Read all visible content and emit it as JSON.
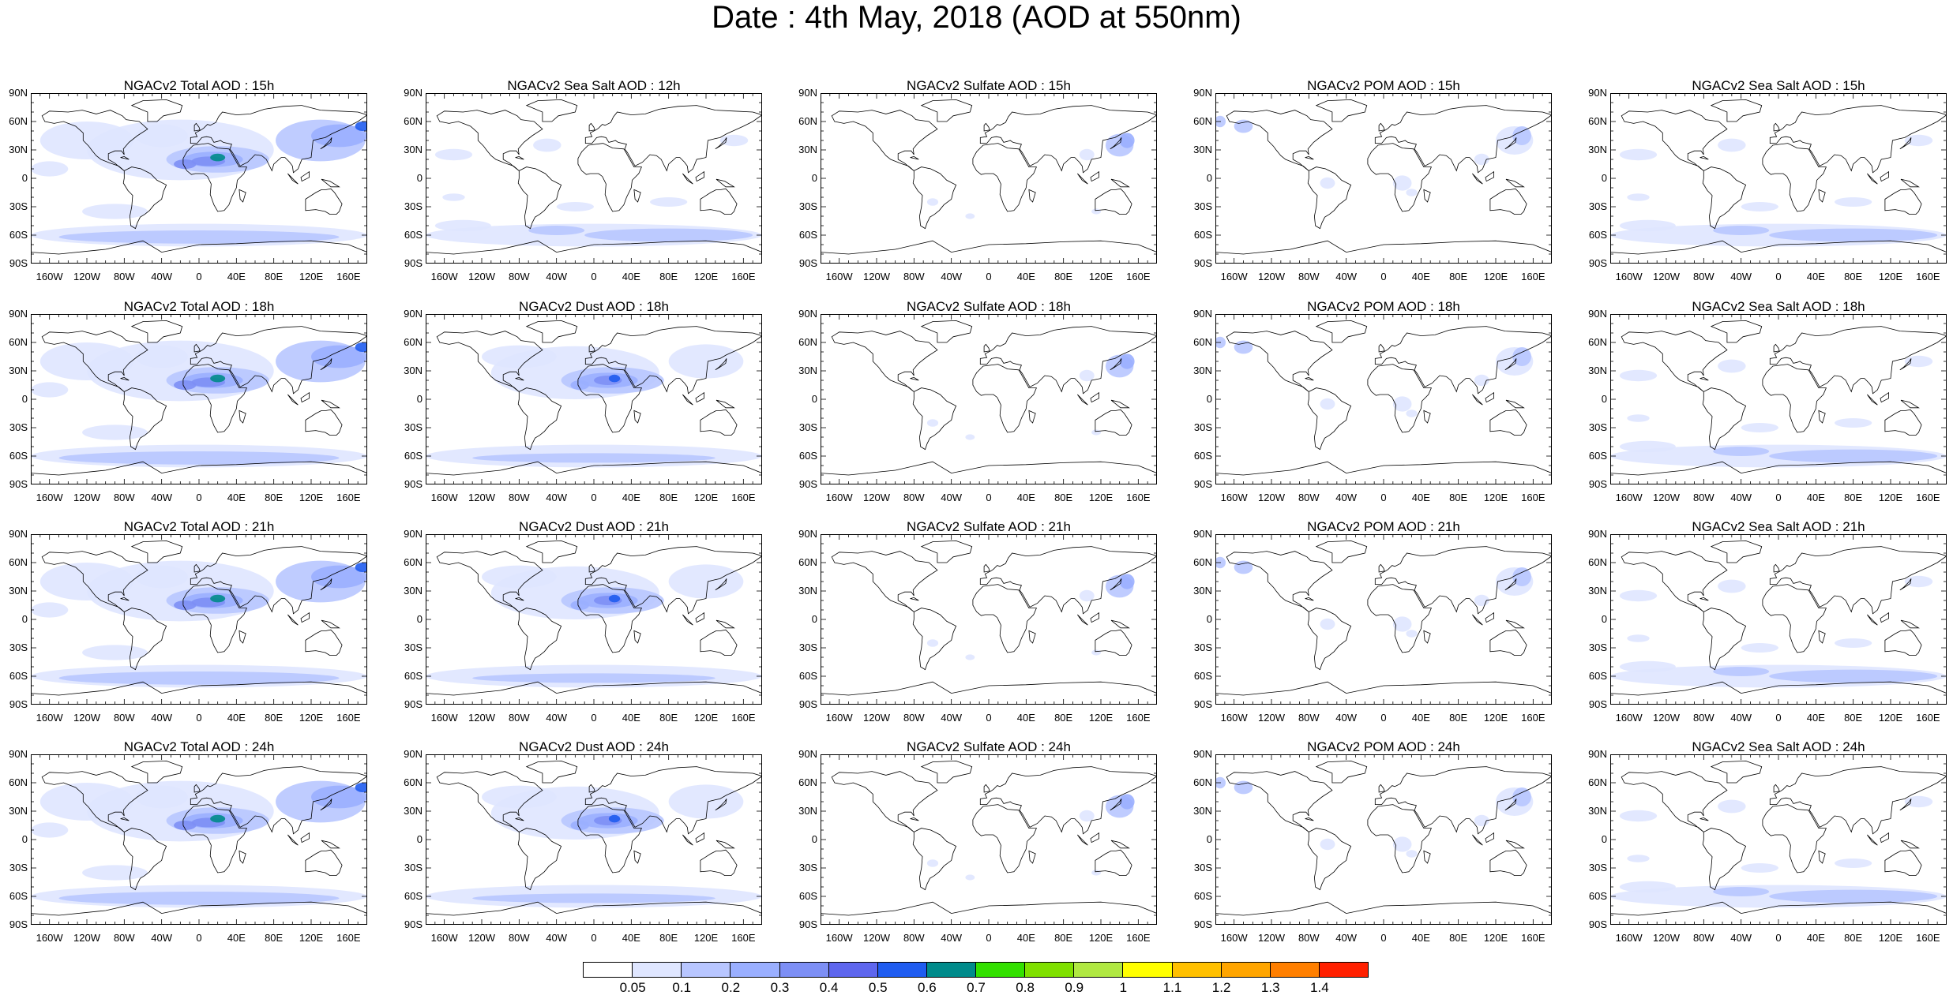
{
  "title": "Date : 4th May, 2018 (AOD at 550nm)",
  "lat_labels": [
    "90N",
    "60N",
    "30N",
    "0",
    "30S",
    "60S",
    "90S"
  ],
  "lon_labels": [
    "160W",
    "120W",
    "80W",
    "40W",
    "0",
    "40E",
    "80E",
    "120E",
    "160E"
  ],
  "panel_titles": [
    [
      "NGACv2 Total AOD : 15h",
      "NGACv2 Sea Salt  AOD : 12h",
      "NGACv2 Sulfate AOD : 15h",
      "NGACv2 POM AOD : 15h",
      "NGACv2 Sea Salt  AOD : 15h"
    ],
    [
      "NGACv2 Total AOD : 18h",
      "NGACv2 Dust AOD : 18h",
      "NGACv2 Sulfate AOD : 18h",
      "NGACv2 POM AOD : 18h",
      "NGACv2 Sea Salt  AOD : 18h"
    ],
    [
      "NGACv2 Total AOD : 21h",
      "NGACv2 Dust AOD : 21h",
      "NGACv2 Sulfate AOD : 21h",
      "NGACv2 POM AOD : 21h",
      "NGACv2 Sea Salt  AOD : 21h"
    ],
    [
      "NGACv2 Total AOD : 24h",
      "NGACv2 Dust AOD : 24h",
      "NGACv2 Sulfate AOD : 24h",
      "NGACv2 POM AOD : 24h",
      "NGACv2 Sea Salt  AOD : 24h"
    ]
  ],
  "colorbar": {
    "ticks": [
      "0.05",
      "0.1",
      "0.2",
      "0.3",
      "0.4",
      "0.5",
      "0.6",
      "0.7",
      "0.8",
      "0.9",
      "1",
      "1.1",
      "1.2",
      "1.3",
      "1.4"
    ],
    "colors": [
      "#ffffff",
      "#dfe6ff",
      "#b8c6ff",
      "#9aafff",
      "#7d8ff5",
      "#5e66ee",
      "#1f5cf0",
      "#008b8b",
      "#33e000",
      "#7fe000",
      "#b0e842",
      "#ffff00",
      "#ffc000",
      "#ffa500",
      "#ff7f00",
      "#ff2000"
    ]
  }
}
